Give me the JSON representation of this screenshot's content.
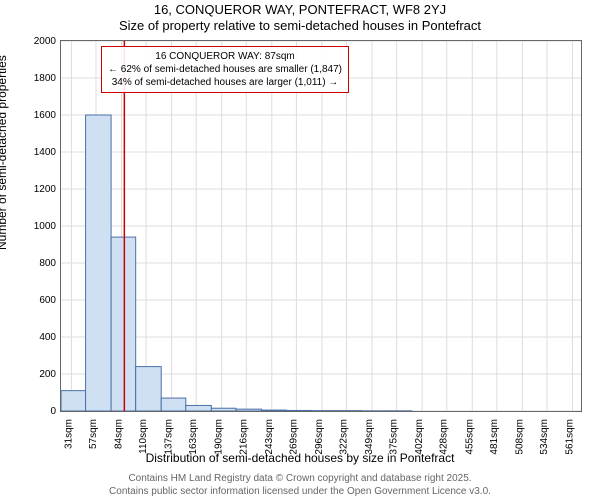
{
  "titles": {
    "line1": "16, CONQUEROR WAY, PONTEFRACT, WF8 2YJ",
    "line2": "Size of property relative to semi-detached houses in Pontefract"
  },
  "ylabel": "Number of semi-detached properties",
  "xlabel": "Distribution of semi-detached houses by size in Pontefract",
  "attribution": {
    "line1": "Contains HM Land Registry data © Crown copyright and database right 2025.",
    "line2": "Contains public sector information licensed under the Open Government Licence v3.0."
  },
  "chart": {
    "type": "histogram",
    "ylim": [
      0,
      2000
    ],
    "yticks": [
      0,
      200,
      400,
      600,
      800,
      1000,
      1200,
      1400,
      1600,
      1800,
      2000
    ],
    "xticks": [
      31,
      57,
      84,
      110,
      137,
      163,
      190,
      216,
      243,
      269,
      296,
      322,
      349,
      375,
      402,
      428,
      455,
      481,
      508,
      534,
      561
    ],
    "xtick_unit": "sqm",
    "xlim": [
      20,
      570
    ],
    "bar_fill": "#cfe0f3",
    "bar_stroke": "#4a6fa5",
    "grid_color": "#dddddd",
    "background": "#ffffff",
    "bars": [
      {
        "x0": 20,
        "x1": 46,
        "y": 110
      },
      {
        "x0": 46,
        "x1": 73,
        "y": 1600
      },
      {
        "x0": 73,
        "x1": 99,
        "y": 940
      },
      {
        "x0": 99,
        "x1": 126,
        "y": 240
      },
      {
        "x0": 126,
        "x1": 152,
        "y": 70
      },
      {
        "x0": 152,
        "x1": 179,
        "y": 30
      },
      {
        "x0": 179,
        "x1": 205,
        "y": 15
      },
      {
        "x0": 205,
        "x1": 232,
        "y": 10
      },
      {
        "x0": 232,
        "x1": 258,
        "y": 5
      },
      {
        "x0": 258,
        "x1": 285,
        "y": 3
      },
      {
        "x0": 285,
        "x1": 311,
        "y": 2
      },
      {
        "x0": 311,
        "x1": 338,
        "y": 2
      },
      {
        "x0": 338,
        "x1": 364,
        "y": 1
      },
      {
        "x0": 364,
        "x1": 391,
        "y": 1
      }
    ],
    "marker_x": 87,
    "marker_color": "#cc0000"
  },
  "annotation": {
    "line1": "16 CONQUEROR WAY: 87sqm",
    "line2": "← 62% of semi-detached houses are smaller (1,847)",
    "line3": "34% of semi-detached houses are larger (1,011) →",
    "border_color": "#cc0000"
  }
}
